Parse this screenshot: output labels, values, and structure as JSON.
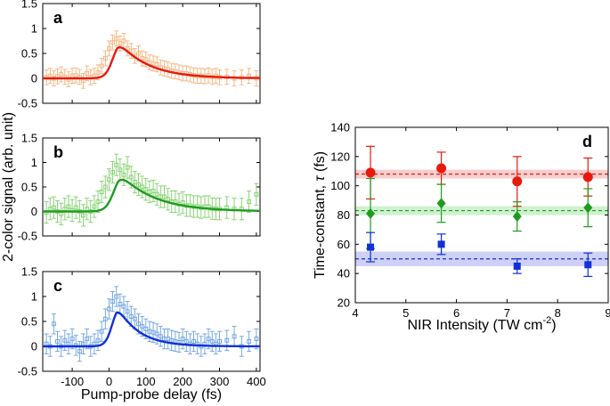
{
  "chart_data": [
    {
      "id": "a",
      "type": "scatter",
      "panel_label": "a",
      "xlim": [
        -180,
        410
      ],
      "ylim": [
        -0.5,
        1.5
      ],
      "xticks": [
        -100,
        0,
        100,
        200,
        300,
        400
      ],
      "yticks": [
        -0.5,
        0,
        0.5,
        1,
        1.5
      ],
      "ytick_labels": [
        "-0.5",
        "0",
        "0.5",
        "1",
        "1.5"
      ],
      "xtick_labels": [],
      "xlabel": "",
      "ylabel": "",
      "marker_color": "#f5b27a",
      "fit_color": "#e8190c",
      "x": [
        -170,
        -160,
        -150,
        -140,
        -130,
        -120,
        -110,
        -100,
        -90,
        -80,
        -70,
        -60,
        -50,
        -40,
        -30,
        -20,
        -10,
        0,
        10,
        20,
        30,
        40,
        50,
        60,
        70,
        80,
        90,
        100,
        110,
        120,
        130,
        140,
        150,
        160,
        170,
        180,
        190,
        200,
        210,
        220,
        230,
        240,
        250,
        260,
        270,
        280,
        290,
        300,
        320,
        340,
        360,
        380,
        400
      ],
      "y": [
        0.02,
        0.05,
        0.0,
        0.04,
        0.08,
        0.03,
        -0.02,
        0.05,
        0.06,
        0.03,
        -0.05,
        0.1,
        0.02,
        0.05,
        0.12,
        0.25,
        0.4,
        0.6,
        0.72,
        0.8,
        0.7,
        0.75,
        0.6,
        0.55,
        0.45,
        0.5,
        0.4,
        0.38,
        0.32,
        0.3,
        0.28,
        0.22,
        0.2,
        0.18,
        0.15,
        0.14,
        0.12,
        0.1,
        0.1,
        0.08,
        0.06,
        0.05,
        0.05,
        0.04,
        0.06,
        0.03,
        0.05,
        0.02,
        0.03,
        0.0,
        0.02,
        0.05,
        0.0
      ],
      "err": 0.15,
      "fit": {
        "amplitude": 0.78,
        "t0": 22,
        "rise": 20,
        "tau": 80
      }
    },
    {
      "id": "b",
      "type": "scatter",
      "panel_label": "b",
      "xlim": [
        -180,
        410
      ],
      "ylim": [
        -0.5,
        1.5
      ],
      "xticks": [
        -100,
        0,
        100,
        200,
        300,
        400
      ],
      "yticks": [
        -0.5,
        0,
        0.5,
        1,
        1.5
      ],
      "ytick_labels": [
        "-0.5",
        "0",
        "0.5",
        "1",
        "1.5"
      ],
      "xtick_labels": [],
      "xlabel": "",
      "ylabel": "2-color signal (arb. unit)",
      "marker_color": "#7fcf6a",
      "fit_color": "#1e9b1e",
      "x": [
        -170,
        -160,
        -150,
        -140,
        -130,
        -120,
        -110,
        -100,
        -90,
        -80,
        -70,
        -60,
        -50,
        -40,
        -30,
        -20,
        -10,
        0,
        10,
        20,
        30,
        40,
        50,
        60,
        70,
        80,
        90,
        100,
        110,
        120,
        130,
        140,
        150,
        160,
        170,
        180,
        190,
        200,
        210,
        220,
        230,
        240,
        250,
        260,
        270,
        280,
        290,
        300,
        320,
        340,
        360,
        380,
        400
      ],
      "y": [
        -0.02,
        0.05,
        0.08,
        0.0,
        -0.05,
        0.05,
        0.1,
        0.02,
        0.08,
        0.0,
        -0.08,
        0.05,
        0.0,
        0.1,
        0.2,
        0.4,
        0.5,
        0.65,
        0.8,
        0.95,
        0.85,
        0.75,
        0.9,
        0.7,
        0.6,
        0.55,
        0.5,
        0.45,
        0.4,
        0.42,
        0.35,
        0.3,
        0.3,
        0.25,
        0.2,
        0.2,
        0.15,
        0.18,
        0.12,
        0.12,
        0.1,
        0.1,
        0.08,
        0.1,
        0.1,
        0.06,
        0.05,
        0.05,
        0.08,
        0.05,
        0.05,
        0.2,
        0.35
      ],
      "err": 0.22,
      "fit": {
        "amplitude": 0.82,
        "t0": 25,
        "rise": 22,
        "tau": 92
      }
    },
    {
      "id": "c",
      "type": "scatter",
      "panel_label": "c",
      "xlim": [
        -180,
        410
      ],
      "ylim": [
        -0.5,
        1.5
      ],
      "xticks": [
        -100,
        0,
        100,
        200,
        300,
        400
      ],
      "yticks": [
        -0.5,
        0,
        0.5,
        1,
        1.5
      ],
      "ytick_labels": [
        "-0.5",
        "0",
        "0.5",
        "1",
        "1.5"
      ],
      "xtick_labels": [
        "-100",
        "0",
        "100",
        "200",
        "300",
        "400"
      ],
      "xlabel": "Pump-probe delay (fs)",
      "ylabel": "",
      "marker_color": "#6aa0e0",
      "fit_color": "#1030d8",
      "x": [
        -170,
        -160,
        -150,
        -140,
        -130,
        -120,
        -110,
        -100,
        -90,
        -80,
        -70,
        -60,
        -50,
        -40,
        -30,
        -20,
        -10,
        0,
        10,
        20,
        30,
        40,
        50,
        60,
        70,
        80,
        90,
        100,
        110,
        120,
        130,
        140,
        150,
        160,
        170,
        180,
        190,
        200,
        210,
        220,
        230,
        240,
        250,
        260,
        270,
        280,
        290,
        300,
        320,
        340,
        360,
        380,
        400
      ],
      "y": [
        0.05,
        0.0,
        0.45,
        0.1,
        0.0,
        0.12,
        0.05,
        0.15,
        0.02,
        -0.1,
        0.05,
        0.15,
        0.0,
        0.05,
        0.12,
        0.3,
        0.55,
        0.75,
        0.9,
        1.0,
        0.85,
        0.8,
        0.7,
        0.6,
        0.55,
        0.45,
        0.4,
        0.35,
        0.3,
        0.28,
        0.25,
        0.2,
        0.15,
        0.15,
        0.12,
        0.1,
        0.08,
        0.15,
        0.1,
        0.05,
        0.1,
        0.05,
        0.0,
        0.05,
        0.15,
        0.1,
        0.05,
        0.1,
        0.12,
        0.2,
        0.0,
        0.1,
        0.15
      ],
      "err": 0.2,
      "fit": {
        "amplitude": 0.85,
        "t0": 20,
        "rise": 18,
        "tau": 58
      }
    },
    {
      "id": "d",
      "type": "scatter",
      "panel_label": "d",
      "xlim": [
        4,
        9
      ],
      "ylim": [
        20,
        140
      ],
      "xticks": [
        4,
        5,
        6,
        7,
        8,
        9
      ],
      "yticks": [
        20,
        40,
        60,
        80,
        100,
        120,
        140
      ],
      "xtick_labels": [
        "4",
        "5",
        "6",
        "7",
        "8",
        "9"
      ],
      "ytick_labels": [
        "20",
        "40",
        "60",
        "80",
        "100",
        "120",
        "140"
      ],
      "xlabel": "NIR Intensity (TW cm",
      "xlabel_sup": "-2",
      "xlabel_end": ")",
      "ylabel": "Time-constant, ",
      "ylabel_symbol": "τ",
      "ylabel_end": " (fs)",
      "series": [
        {
          "color": "#e8190c",
          "band_color": "#f7c6c6",
          "marker": "circle",
          "mean": 108,
          "band": [
            105,
            111
          ],
          "x": [
            4.3,
            5.7,
            7.2,
            8.6
          ],
          "y": [
            109,
            112,
            103,
            106
          ],
          "err": [
            18,
            11,
            17,
            13
          ]
        },
        {
          "color": "#1e9b1e",
          "band_color": "#c6efc6",
          "marker": "diamond",
          "mean": 83,
          "band": [
            80,
            86
          ],
          "x": [
            4.3,
            5.7,
            7.2,
            8.6
          ],
          "y": [
            81,
            88,
            79,
            85
          ],
          "err": [
            24,
            13,
            10,
            13
          ]
        },
        {
          "color": "#1030d8",
          "band_color": "#c6c8f4",
          "marker": "square",
          "mean": 50,
          "band": [
            45,
            55
          ],
          "x": [
            4.3,
            5.7,
            7.2,
            8.6
          ],
          "y": [
            58,
            60,
            45,
            46
          ],
          "err": [
            10,
            7,
            5,
            8
          ]
        }
      ]
    }
  ]
}
